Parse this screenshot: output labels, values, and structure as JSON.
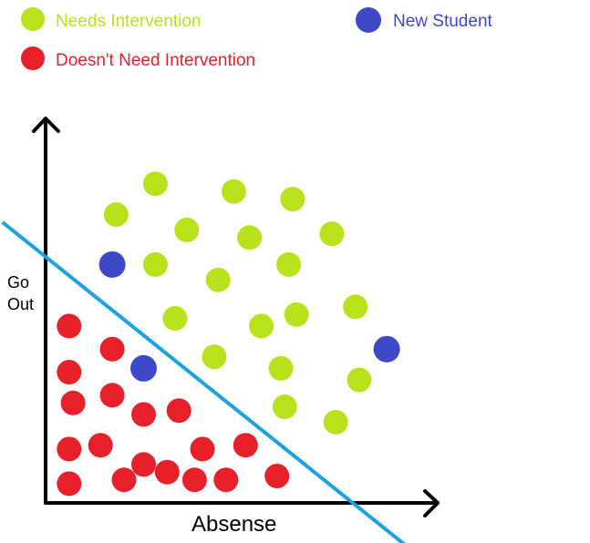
{
  "colors": {
    "needs": "#b8e31c",
    "doesnt_need": "#e8202a",
    "new_student": "#3e48c8",
    "boundary": "#1aa3e0",
    "axis": "#000000"
  },
  "legend": {
    "needs": "Needs Intervention",
    "doesnt_need": "Doesn't Need Intervention",
    "new_student": "New Student"
  },
  "axes": {
    "y_label_line1": "Go",
    "y_label_line2": "Out",
    "x_label": "Absense"
  },
  "chart_data": {
    "type": "scatter",
    "xlabel": "Absense",
    "ylabel": "Go Out",
    "xlim": [
      0,
      100
    ],
    "ylim": [
      0,
      100
    ],
    "series": [
      {
        "name": "Needs Intervention",
        "points": [
          [
            28,
            83
          ],
          [
            18,
            75
          ],
          [
            36,
            71
          ],
          [
            48,
            81
          ],
          [
            52,
            69
          ],
          [
            63,
            79
          ],
          [
            73,
            70
          ],
          [
            28,
            62
          ],
          [
            44,
            58
          ],
          [
            62,
            62
          ],
          [
            33,
            48
          ],
          [
            55,
            46
          ],
          [
            64,
            49
          ],
          [
            79,
            51
          ],
          [
            43,
            38
          ],
          [
            60,
            35
          ],
          [
            80,
            32
          ],
          [
            61,
            25
          ],
          [
            74,
            21
          ]
        ]
      },
      {
        "name": "Doesn't Need Intervention",
        "points": [
          [
            6,
            46
          ],
          [
            17,
            40
          ],
          [
            6,
            34
          ],
          [
            7,
            26
          ],
          [
            17,
            28
          ],
          [
            25,
            23
          ],
          [
            34,
            24
          ],
          [
            6,
            14
          ],
          [
            14,
            15
          ],
          [
            40,
            14
          ],
          [
            25,
            10
          ],
          [
            51,
            15
          ],
          [
            6,
            5
          ],
          [
            20,
            6
          ],
          [
            31,
            8
          ],
          [
            38,
            6
          ],
          [
            46,
            6
          ],
          [
            59,
            7
          ]
        ]
      },
      {
        "name": "New Student",
        "points": [
          [
            17,
            62
          ],
          [
            25,
            35
          ],
          [
            87,
            40
          ]
        ]
      }
    ],
    "boundary_line": [
      [
        -11,
        73
      ],
      [
        93,
        -12
      ]
    ]
  }
}
